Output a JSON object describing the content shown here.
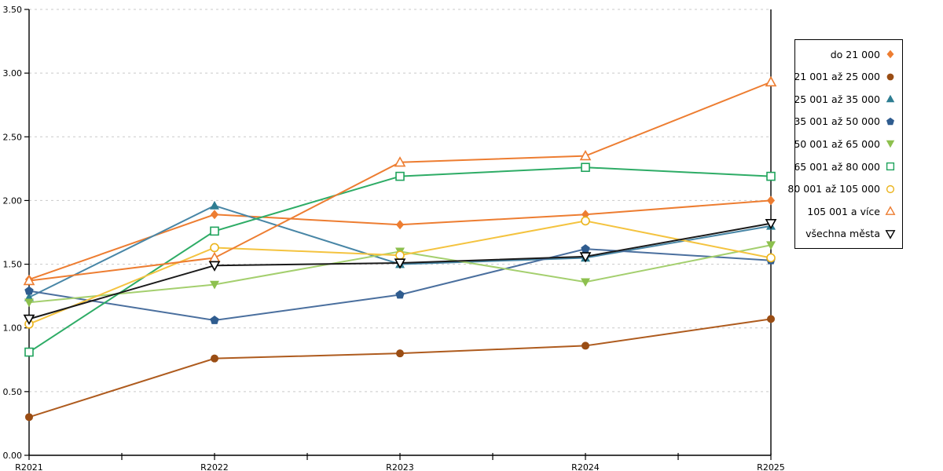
{
  "chart_data": {
    "type": "line",
    "title": "",
    "xlabel": "",
    "ylabel": "",
    "categories": [
      "R2021",
      "R2022",
      "R2023",
      "R2024",
      "R2025"
    ],
    "y_ticks": [
      "0.00",
      "0.50",
      "1.00",
      "1.50",
      "2.00",
      "2.50",
      "3.00",
      "3.50"
    ],
    "ylim": [
      0,
      3.5
    ],
    "grid": "horizontal-dashed",
    "grid_color": "#c9c9c9",
    "axis_color": "#000000",
    "legend_position": "right",
    "series": [
      {
        "name": "do 21 000",
        "marker": "diamond-filled",
        "color": "#ED7D31",
        "line_color": "#ED7D31",
        "values": [
          1.38,
          1.89,
          1.81,
          1.89,
          2.0
        ]
      },
      {
        "name": "21 001 až 25 000",
        "marker": "circle-filled",
        "color": "#9A4D14",
        "line_color": "#AE5B1E",
        "values": [
          0.3,
          0.76,
          0.8,
          0.86,
          1.07
        ]
      },
      {
        "name": "25 001 až 35 000",
        "marker": "triangle-up-filled",
        "color": "#2E7D92",
        "line_color": "#4886A6",
        "values": [
          1.24,
          1.96,
          1.5,
          1.55,
          1.8
        ]
      },
      {
        "name": "35 001 až 50 000",
        "marker": "pentagon-filled",
        "color": "#2F5C8F",
        "line_color": "#4A6F9E",
        "values": [
          1.29,
          1.06,
          1.26,
          1.62,
          1.53
        ]
      },
      {
        "name": "50 001 až 65 000",
        "marker": "triangle-down-filled",
        "color": "#8DC04E",
        "line_color": "#A4CF6E",
        "values": [
          1.2,
          1.34,
          1.6,
          1.36,
          1.65
        ]
      },
      {
        "name": "65 001 až 80 000",
        "marker": "square-open",
        "color": "#1FA35C",
        "line_color": "#2EAC66",
        "values": [
          0.81,
          1.76,
          2.19,
          2.26,
          2.19
        ]
      },
      {
        "name": "80 001 až 105 000",
        "marker": "circle-open",
        "color": "#EBB41C",
        "line_color": "#F4C33F",
        "values": [
          1.03,
          1.63,
          1.57,
          1.84,
          1.55
        ]
      },
      {
        "name": "105 001 a více",
        "marker": "triangle-up-open",
        "color": "#ED7D31",
        "line_color": "#ED7D31",
        "values": [
          1.37,
          1.55,
          2.3,
          2.35,
          2.93
        ]
      },
      {
        "name": "všechna města",
        "marker": "triangle-down-open",
        "color": "#000000",
        "line_color": "#1A1A1A",
        "values": [
          1.07,
          1.49,
          1.51,
          1.56,
          1.82
        ]
      }
    ]
  }
}
